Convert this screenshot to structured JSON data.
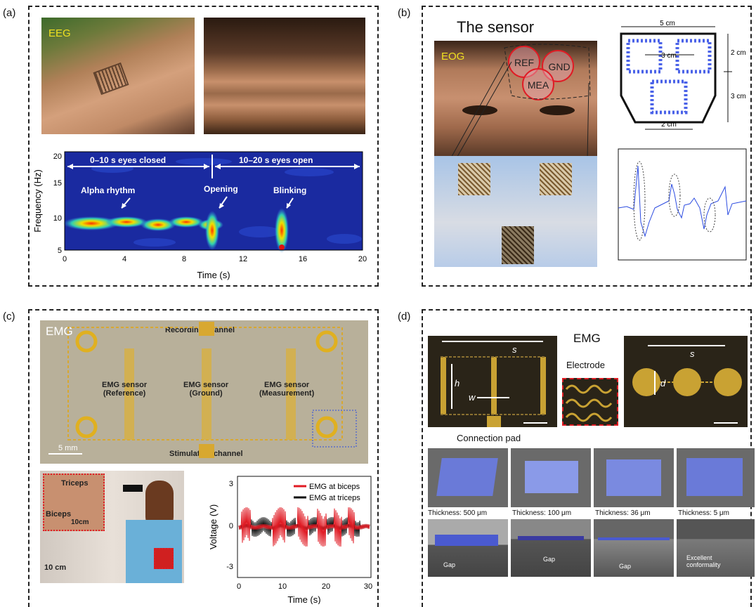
{
  "panels": {
    "a": {
      "label": "(a)",
      "photo_tag": "EEG",
      "chart": {
        "ylabel": "Frequency (Hz)",
        "xlabel": "Time (s)",
        "xticks": [
          "0",
          "4",
          "8",
          "12",
          "16",
          "20"
        ],
        "yticks": [
          "5",
          "10",
          "15",
          "20"
        ],
        "seg1": "0–10 s eyes closed",
        "seg2": "10–20 s eyes open",
        "ann_alpha": "Alpha rhythm",
        "ann_opening": "Opening",
        "ann_blinking": "Blinking"
      }
    },
    "b": {
      "label": "(b)",
      "title": "The sensor",
      "photo_tag": "EOG",
      "ref": "REF",
      "gnd": "GND",
      "mea": "MEA",
      "dim_top": "5 cm",
      "dim_mid": "3 cm",
      "dim_r1": "2 cm",
      "dim_r2": "3 cm",
      "dim_bottom": "2 cm"
    },
    "c": {
      "label": "(c)",
      "emg_tag": "EMG",
      "recording": "Recording channel",
      "stimulation": "Stimulation channel",
      "s1_a": "EMG sensor",
      "s1_b": "(Reference)",
      "s2_a": "EMG sensor",
      "s2_b": "(Ground)",
      "s3_a": "EMG sensor",
      "s3_b": "(Measurement)",
      "scale": "5 mm",
      "triceps": "Triceps",
      "biceps": "Biceps",
      "inset_scale": "10cm",
      "photo_scale": "10 cm",
      "ylabel": "Voltage (V)",
      "xlabel": "Time (s)",
      "yticks": [
        "3",
        "0",
        "-3"
      ],
      "xticks": [
        "0",
        "10",
        "20",
        "30"
      ],
      "legend_red": "EMG at biceps",
      "legend_black": "EMG at triceps"
    },
    "d": {
      "label": "(d)",
      "title": "EMG",
      "s1": "s",
      "h": "h",
      "w": "w",
      "s2": "s",
      "d": "d",
      "electrode": "Electrode",
      "pad": "Connection pad",
      "thicknesses": [
        "Thickness: 500 μm",
        "Thickness: 100 μm",
        "Thickness: 36 μm",
        "Thickness: 5 μm"
      ],
      "gap": "Gap",
      "excellent": "Excellent\nconformality"
    }
  },
  "colors": {
    "blue_mesh": "#4a62e8",
    "red": "#e01b24",
    "gold": "#c9a233"
  }
}
